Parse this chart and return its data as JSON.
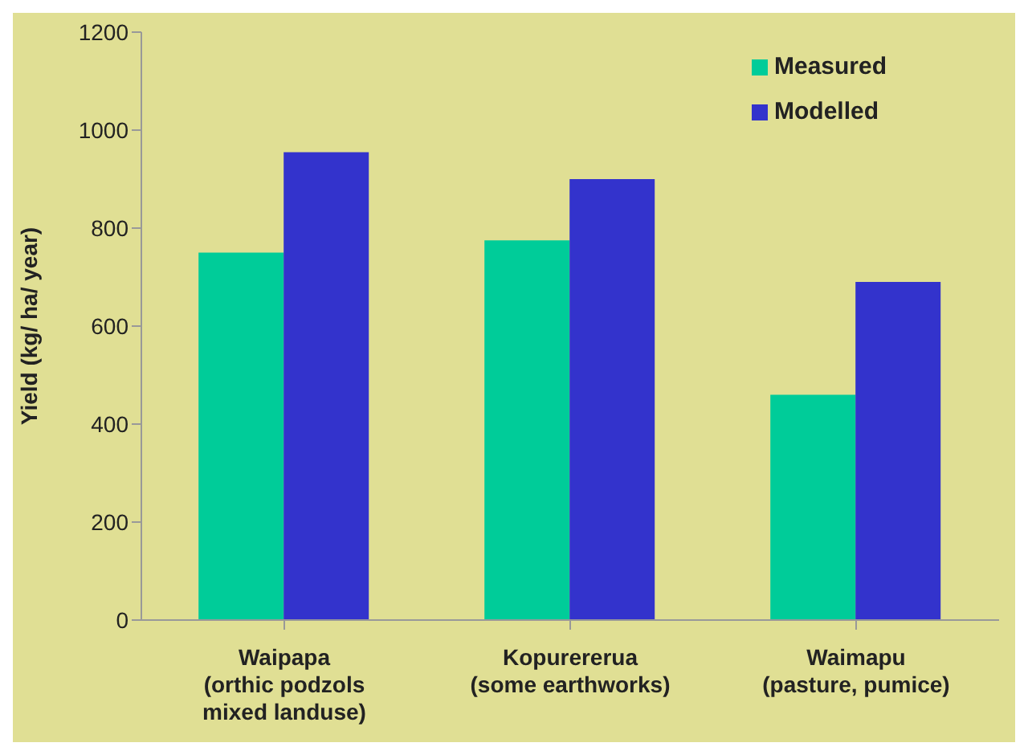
{
  "chart_data": {
    "type": "bar",
    "ylabel": "Yield  (kg/ ha/ year)",
    "categories": [
      "Waipapa\n(orthic podzols\nmixed landuse)",
      "Kopurererua\n(some earthworks)",
      "Waimapu\n(pasture, pumice)"
    ],
    "series": [
      {
        "name": "Measured",
        "color": "#00cc99",
        "values": [
          750,
          775,
          460
        ]
      },
      {
        "name": "Modelled",
        "color": "#3333cc",
        "values": [
          955,
          900,
          690
        ]
      }
    ],
    "ylim": [
      0,
      1200
    ],
    "yticks": [
      0,
      200,
      400,
      600,
      800,
      1000,
      1200
    ],
    "grid": false,
    "legend": "top right"
  }
}
